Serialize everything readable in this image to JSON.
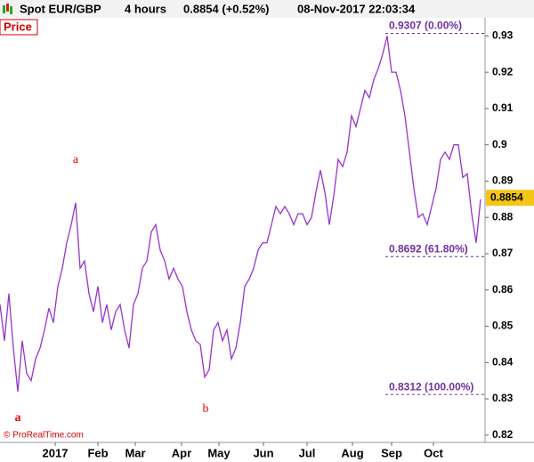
{
  "header": {
    "instrument": "Spot EUR/GBP",
    "timeframe": "4 hours",
    "quote": "0.8854 (+0.52%)",
    "timestamp": "08-Nov-2017 22:03:34"
  },
  "chart_data": {
    "type": "line",
    "title": "Price",
    "credit": "© ProRealTime.com",
    "series": [
      {
        "name": "Spot EUR/GBP",
        "color": "#9933cc",
        "values": [
          0.856,
          0.846,
          0.859,
          0.844,
          0.832,
          0.846,
          0.837,
          0.835,
          0.841,
          0.844,
          0.849,
          0.855,
          0.851,
          0.861,
          0.866,
          0.873,
          0.878,
          0.884,
          0.866,
          0.868,
          0.859,
          0.854,
          0.861,
          0.851,
          0.856,
          0.849,
          0.854,
          0.856,
          0.849,
          0.844,
          0.856,
          0.859,
          0.866,
          0.868,
          0.876,
          0.878,
          0.871,
          0.868,
          0.863,
          0.866,
          0.863,
          0.861,
          0.854,
          0.849,
          0.846,
          0.845,
          0.836,
          0.838,
          0.849,
          0.851,
          0.846,
          0.849,
          0.841,
          0.844,
          0.851,
          0.861,
          0.863,
          0.866,
          0.871,
          0.873,
          0.873,
          0.878,
          0.883,
          0.881,
          0.883,
          0.881,
          0.878,
          0.881,
          0.881,
          0.878,
          0.88,
          0.887,
          0.893,
          0.887,
          0.878,
          0.886,
          0.896,
          0.894,
          0.898,
          0.908,
          0.905,
          0.91,
          0.915,
          0.913,
          0.918,
          0.921,
          0.925,
          0.93,
          0.92,
          0.92,
          0.915,
          0.908,
          0.898,
          0.888,
          0.88,
          0.881,
          0.878,
          0.883,
          0.888,
          0.896,
          0.898,
          0.896,
          0.9,
          0.9,
          0.891,
          0.892,
          0.881,
          0.873,
          0.885
        ]
      }
    ],
    "xlim": [
      0,
      109
    ],
    "xticks": [
      {
        "value": 12.4,
        "label": "2017"
      },
      {
        "value": 22,
        "label": "Feb"
      },
      {
        "value": 30.4,
        "label": "Mar"
      },
      {
        "value": 40.8,
        "label": "Apr"
      },
      {
        "value": 49.2,
        "label": "May"
      },
      {
        "value": 59.2,
        "label": "Jun"
      },
      {
        "value": 69,
        "label": "Jul"
      },
      {
        "value": 79.2,
        "label": "Aug"
      },
      {
        "value": 88,
        "label": "Sep"
      },
      {
        "value": 97.4,
        "label": "Oct"
      }
    ],
    "ylim": [
      0.818,
      0.935
    ],
    "yticks": [
      0.82,
      0.83,
      0.84,
      0.85,
      0.86,
      0.87,
      0.88,
      0.89,
      0.9,
      0.91,
      0.92,
      0.93
    ],
    "last_price": {
      "value": 0.8854,
      "label": "0.8854"
    },
    "fib_levels": [
      {
        "value": 0.9307,
        "label": "0.9307 (0.00%)"
      },
      {
        "value": 0.8692,
        "label": "0.8692 (61.80%)"
      },
      {
        "value": 0.8312,
        "label": "0.8312 (100.00%)"
      }
    ],
    "wave_labels": [
      "a",
      "a",
      "b"
    ]
  }
}
